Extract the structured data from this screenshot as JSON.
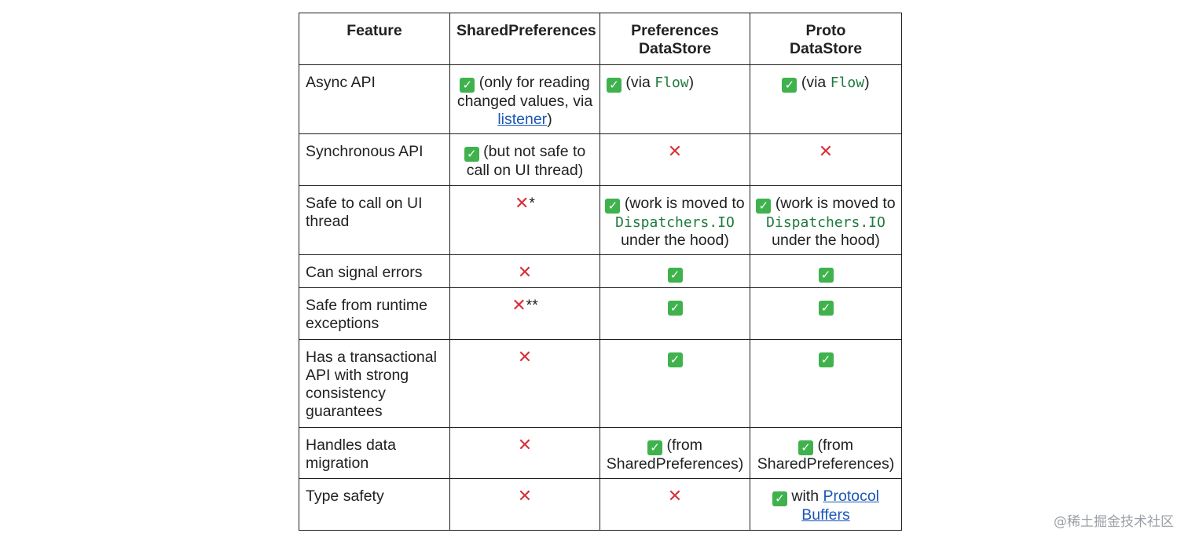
{
  "icons": {
    "check": "check-mark-button-icon",
    "cross": "cross-mark-icon"
  },
  "colors": {
    "check_bg": "#3fb24d",
    "cross": "#d9323a",
    "code": "#1e7a3e",
    "link": "#1a56b8",
    "border": "#1f1f1f"
  },
  "table": {
    "headers": {
      "feature": "Feature",
      "shared_preferences": "SharedPreferences",
      "preferences_datastore_line1": "Preferences",
      "preferences_datastore_line2": "DataStore",
      "proto_datastore_line1": "Proto",
      "proto_datastore_line2": "DataStore"
    },
    "rows": [
      {
        "feature": "Async API",
        "shared": {
          "before": "(only for reading changed values, via ",
          "link": "listener",
          "after": ")"
        },
        "prefs": {
          "before": "(via ",
          "code": "Flow",
          "after": ")"
        },
        "proto": {
          "before": "(via ",
          "code": "Flow",
          "after": ")"
        }
      },
      {
        "feature": "Synchronous API",
        "shared": {
          "text": "(but not safe to call on UI thread)"
        }
      },
      {
        "feature": "Safe to call on UI thread",
        "shared": {
          "suffix": "*"
        },
        "prefs": {
          "before": "(work is moved to ",
          "code": "Dispatchers.IO",
          "after": " under the hood)"
        },
        "proto": {
          "before": "(work is moved to ",
          "code": "Dispatchers.IO",
          "after": " under the hood)"
        }
      },
      {
        "feature": "Can signal errors"
      },
      {
        "feature": "Safe from runtime exceptions",
        "shared": {
          "suffix": "**"
        }
      },
      {
        "feature": "Has a transactional API with strong consistency guarantees"
      },
      {
        "feature": "Handles data migration",
        "prefs": {
          "text": "(from SharedPreferences)"
        },
        "proto": {
          "text": "(from SharedPreferences)"
        }
      },
      {
        "feature": "Type safety",
        "proto": {
          "before": "with ",
          "link": "Protocol Buffers"
        }
      }
    ]
  },
  "watermark": "@稀土掘金技术社区"
}
